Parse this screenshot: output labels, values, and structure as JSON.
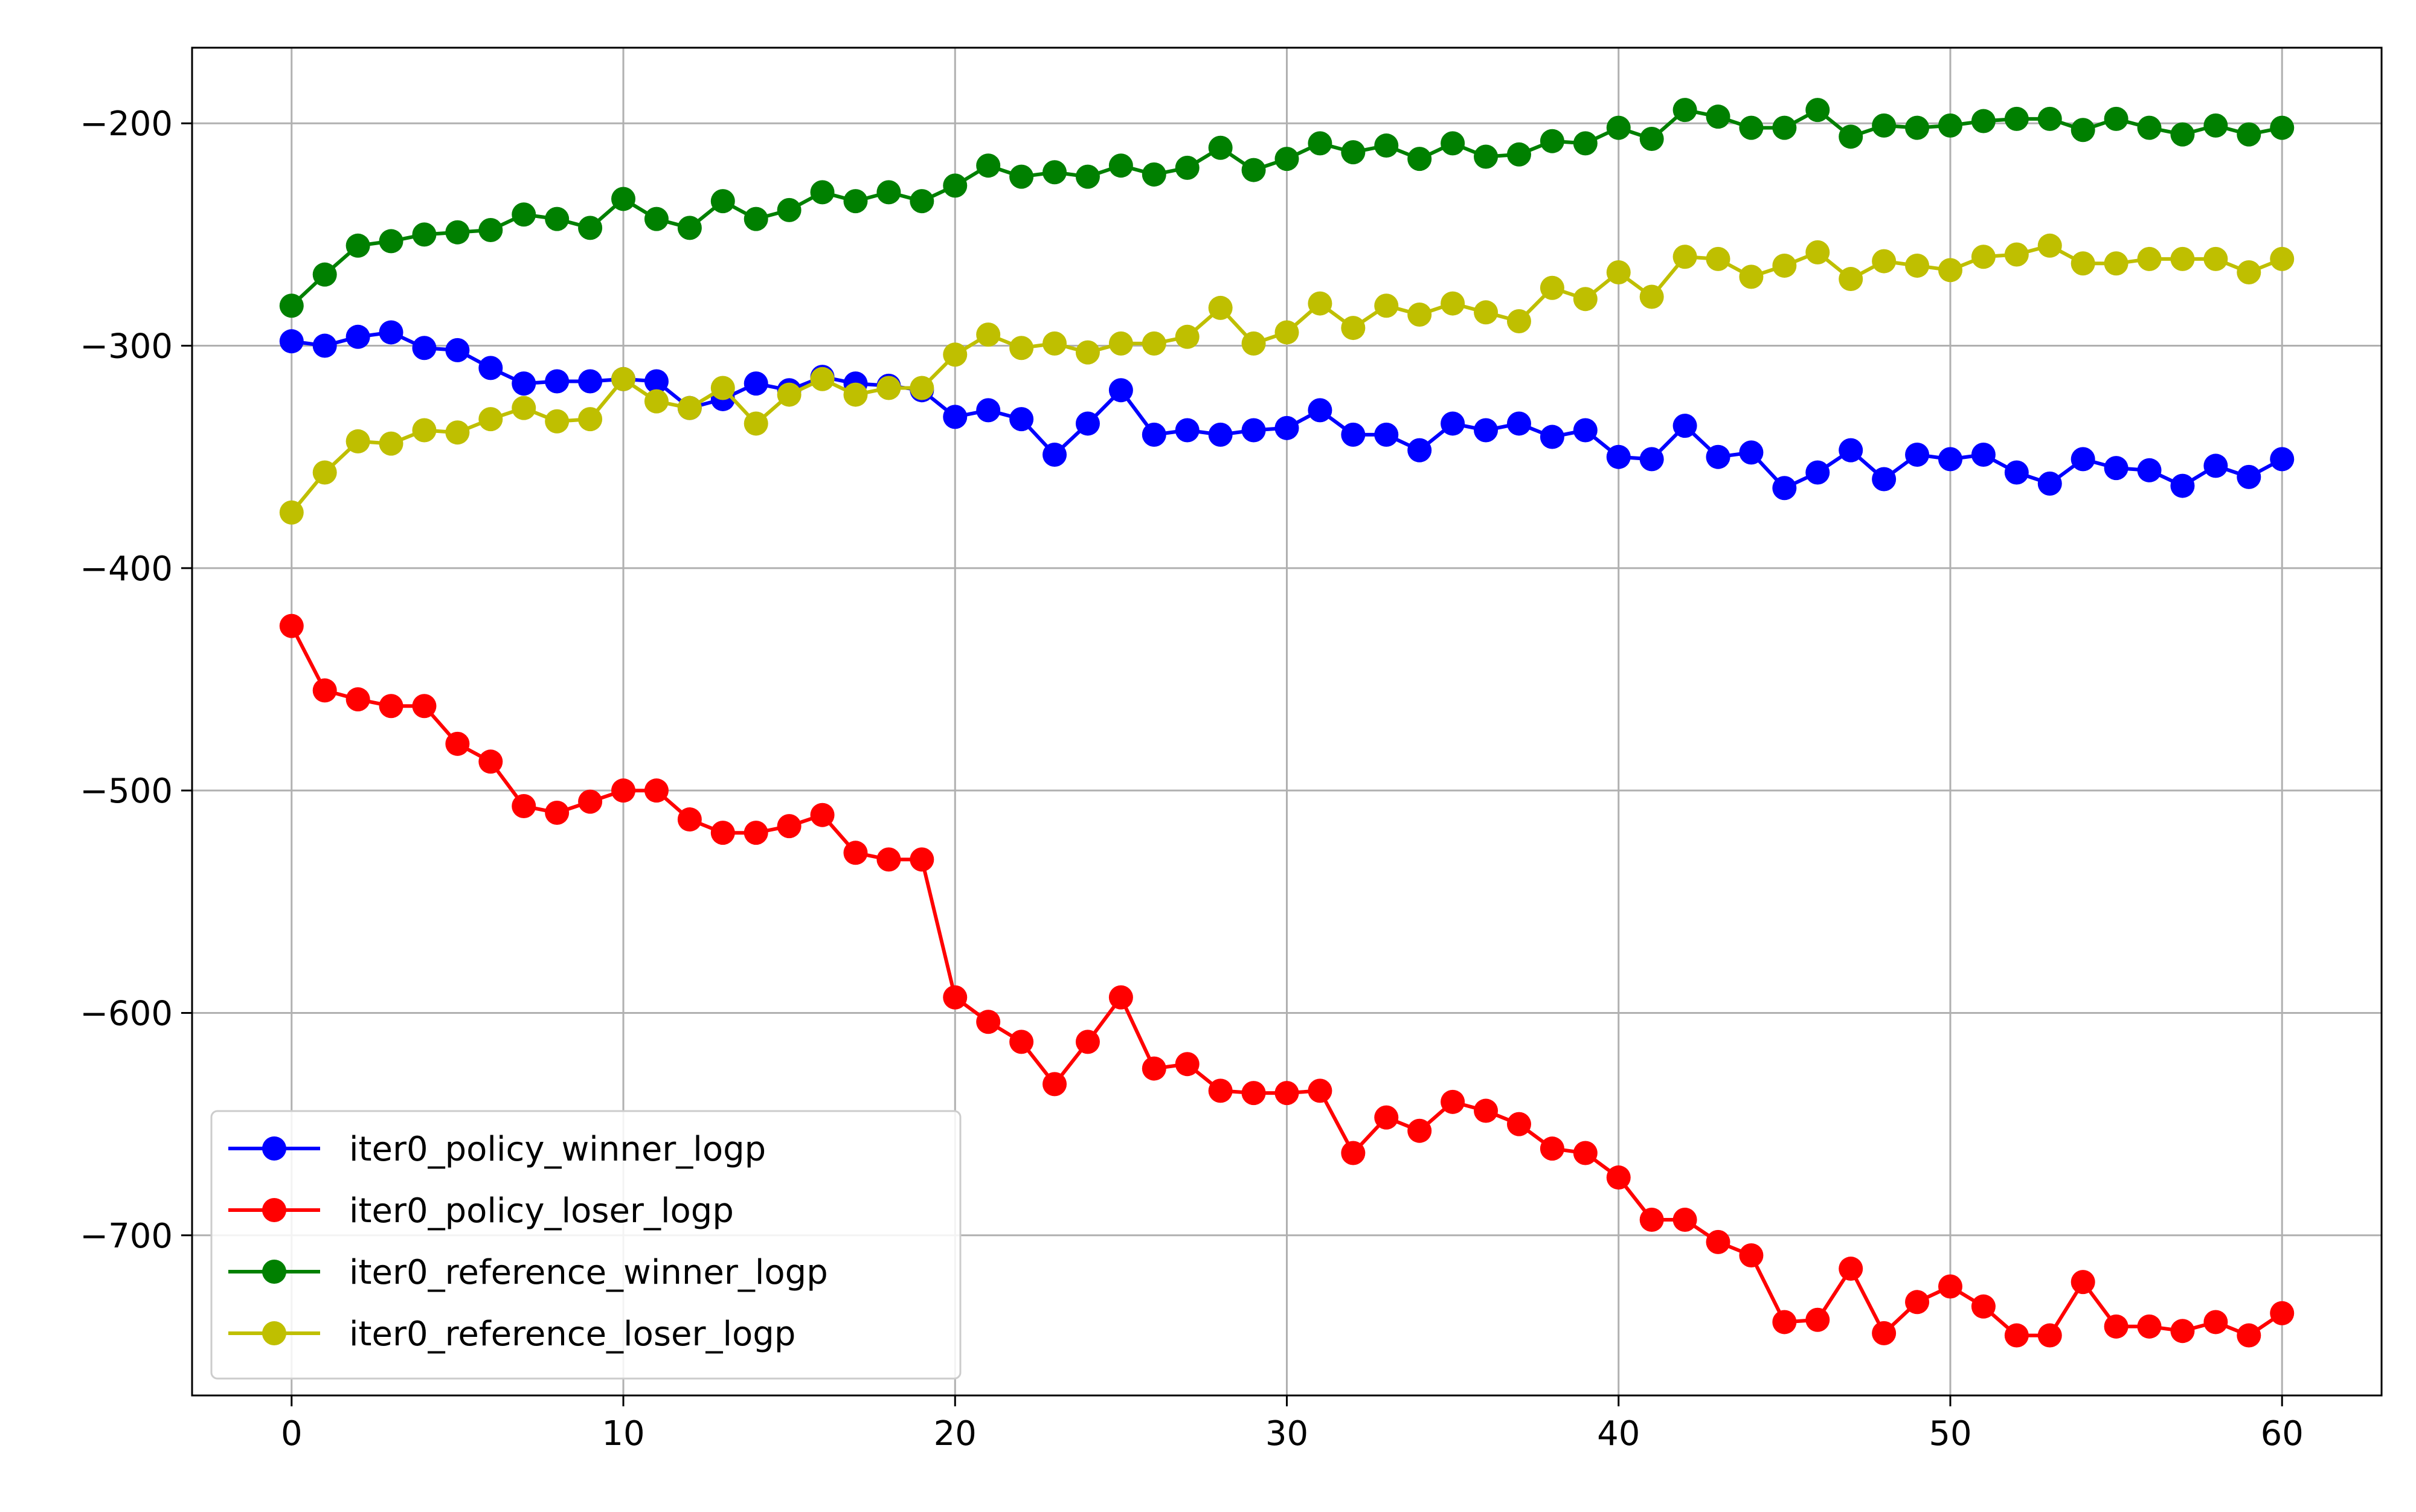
{
  "chart_data": {
    "type": "line",
    "title": "",
    "xlabel": "",
    "ylabel": "",
    "xlim": [
      -3,
      63
    ],
    "ylim": [
      -772,
      -166
    ],
    "xticks": [
      0,
      10,
      20,
      30,
      40,
      50,
      60
    ],
    "yticks": [
      -200,
      -300,
      -400,
      -500,
      -600,
      -700
    ],
    "xtick_labels": [
      "0",
      "10",
      "20",
      "30",
      "40",
      "50",
      "60"
    ],
    "ytick_labels": [
      "−200",
      "−300",
      "−400",
      "−500",
      "−600",
      "−700"
    ],
    "grid": true,
    "legend_position": "lower-left",
    "x": [
      0,
      1,
      2,
      3,
      4,
      5,
      6,
      7,
      8,
      9,
      10,
      11,
      12,
      13,
      14,
      15,
      16,
      17,
      18,
      19,
      20,
      21,
      22,
      23,
      24,
      25,
      26,
      27,
      28,
      29,
      30,
      31,
      32,
      33,
      34,
      35,
      36,
      37,
      38,
      39,
      40,
      41,
      42,
      43,
      44,
      45,
      46,
      47,
      48,
      49,
      50,
      51,
      52,
      53,
      54,
      55,
      56,
      57,
      58,
      59,
      60
    ],
    "series": [
      {
        "name": "iter0_policy_winner_logp",
        "color": "#0000ff",
        "values": [
          -298,
          -300,
          -296,
          -294,
          -301,
          -302,
          -310,
          -317,
          -316,
          -316,
          -315,
          -316,
          -328,
          -324,
          -317,
          -320,
          -314,
          -317,
          -318,
          -320,
          -332,
          -329,
          -333,
          -349,
          -335,
          -320,
          -340,
          -338,
          -340,
          -338,
          -337,
          -329,
          -340,
          -340,
          -347,
          -335,
          -338,
          -335,
          -341,
          -338,
          -350,
          -351,
          -336,
          -350,
          -348,
          -364,
          -357,
          -347,
          -360,
          -349,
          -351,
          -349,
          -357,
          -362,
          -351,
          -355,
          -356,
          -363,
          -354,
          -359,
          -351
        ]
      },
      {
        "name": "iter0_policy_loser_logp",
        "color": "#ff0000",
        "values": [
          -426,
          -455,
          -459,
          -462,
          -462,
          -479,
          -487,
          -507,
          -510,
          -505,
          -500,
          -500,
          -513,
          -519,
          -519,
          -516,
          -511,
          -528,
          -531,
          -531,
          -593,
          -604,
          -613,
          -632,
          -613,
          -593,
          -625,
          -623,
          -635,
          -636,
          -636,
          -635,
          -663,
          -647,
          -653,
          -640,
          -644,
          -650,
          -661,
          -663,
          -674,
          -693,
          -693,
          -703,
          -709,
          -739,
          -738,
          -715,
          -744,
          -730,
          -723,
          -732,
          -745,
          -745,
          -721,
          -741,
          -741,
          -743,
          -739,
          -745,
          -735
        ]
      },
      {
        "name": "iter0_reference_winner_logp",
        "color": "#008000",
        "values": [
          -282,
          -268,
          -255,
          -253,
          -250,
          -249,
          -248,
          -241,
          -243,
          -247,
          -234,
          -243,
          -247,
          -235,
          -243,
          -239,
          -231,
          -235,
          -231,
          -235,
          -228,
          -219,
          -224,
          -222,
          -224,
          -219,
          -223,
          -220,
          -211,
          -221,
          -216,
          -209,
          -213,
          -210,
          -216,
          -209,
          -215,
          -214,
          -208,
          -209,
          -202,
          -207,
          -194,
          -197,
          -202,
          -202,
          -194,
          -206,
          -201,
          -202,
          -201,
          -199,
          -198,
          -198,
          -203,
          -198,
          -202,
          -205,
          -201,
          -205,
          -202
        ]
      },
      {
        "name": "iter0_reference_loser_logp",
        "color": "#bfbf00",
        "values": [
          -375,
          -357,
          -343,
          -344,
          -338,
          -339,
          -333,
          -328,
          -334,
          -333,
          -315,
          -325,
          -328,
          -319,
          -335,
          -322,
          -315,
          -322,
          -319,
          -319,
          -304,
          -295,
          -301,
          -299,
          -303,
          -299,
          -299,
          -296,
          -283,
          -299,
          -294,
          -281,
          -292,
          -282,
          -286,
          -281,
          -285,
          -289,
          -274,
          -279,
          -267,
          -278,
          -260,
          -261,
          -269,
          -264,
          -258,
          -270,
          -262,
          -264,
          -266,
          -260,
          -259,
          -255,
          -263,
          -263,
          -261,
          -261,
          -261,
          -267,
          -261
        ]
      }
    ]
  }
}
